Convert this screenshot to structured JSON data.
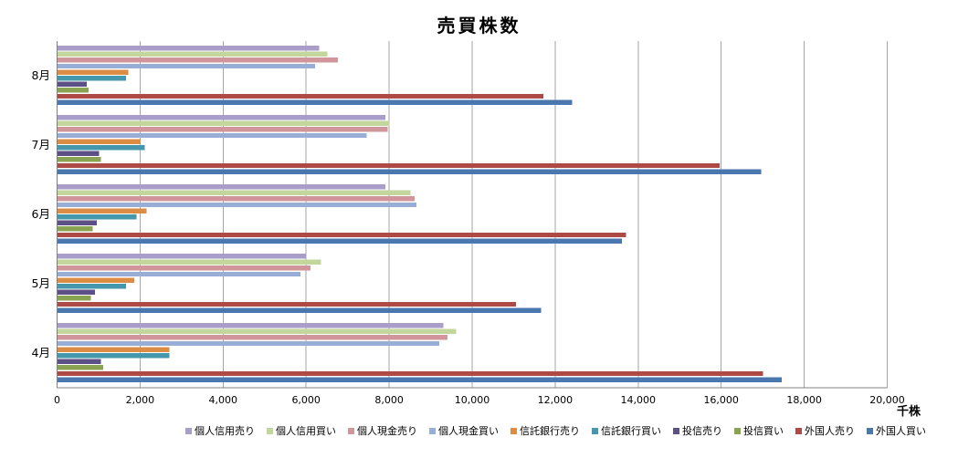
{
  "chart_data": {
    "type": "bar",
    "orientation": "horizontal",
    "title": "売買株数",
    "unit_label": "千株",
    "grid": true,
    "legend_position": "bottom",
    "categories": [
      "8月",
      "7月",
      "6月",
      "5月",
      "4月"
    ],
    "x_axis": {
      "min": 0,
      "max": 20000,
      "tick_labels": [
        "0",
        "2,000",
        "4,000",
        "6,000",
        "8,000",
        "10,000",
        "12,000",
        "14,000",
        "16,000",
        "18,000",
        "20,000"
      ]
    },
    "series": [
      {
        "name": "個人信用売り",
        "color": "#A99EC9",
        "values": [
          6300,
          7900,
          7900,
          6000,
          9300
        ]
      },
      {
        "name": "個人信用買い",
        "color": "#C3D69B",
        "values": [
          6500,
          8000,
          8500,
          6350,
          9600
        ]
      },
      {
        "name": "個人現金売り",
        "color": "#D0969B",
        "values": [
          6750,
          7950,
          8600,
          6100,
          9400
        ]
      },
      {
        "name": "個人現金買い",
        "color": "#97AFD6",
        "values": [
          6200,
          7450,
          8650,
          5850,
          9200
        ]
      },
      {
        "name": "信託銀行売り",
        "color": "#DD8C44",
        "values": [
          1700,
          2000,
          2150,
          1850,
          2700
        ]
      },
      {
        "name": "信託銀行買い",
        "color": "#4497AC",
        "values": [
          1650,
          2100,
          1900,
          1650,
          2700
        ]
      },
      {
        "name": "投信売り",
        "color": "#5C5086",
        "values": [
          700,
          1000,
          950,
          900,
          1050
        ]
      },
      {
        "name": "投信買い",
        "color": "#89A353",
        "values": [
          750,
          1050,
          850,
          800,
          1100
        ]
      },
      {
        "name": "外国人売り",
        "color": "#AE4A45",
        "values": [
          11700,
          15950,
          13700,
          11050,
          17000
        ]
      },
      {
        "name": "外国人買い",
        "color": "#4A77AE",
        "values": [
          12400,
          16950,
          13600,
          11650,
          17450
        ]
      }
    ],
    "style_colors": {
      "gridline": "#A6A6A6",
      "axis_line": "#808080",
      "text": "#000000",
      "background": "#FFFFFF"
    }
  }
}
